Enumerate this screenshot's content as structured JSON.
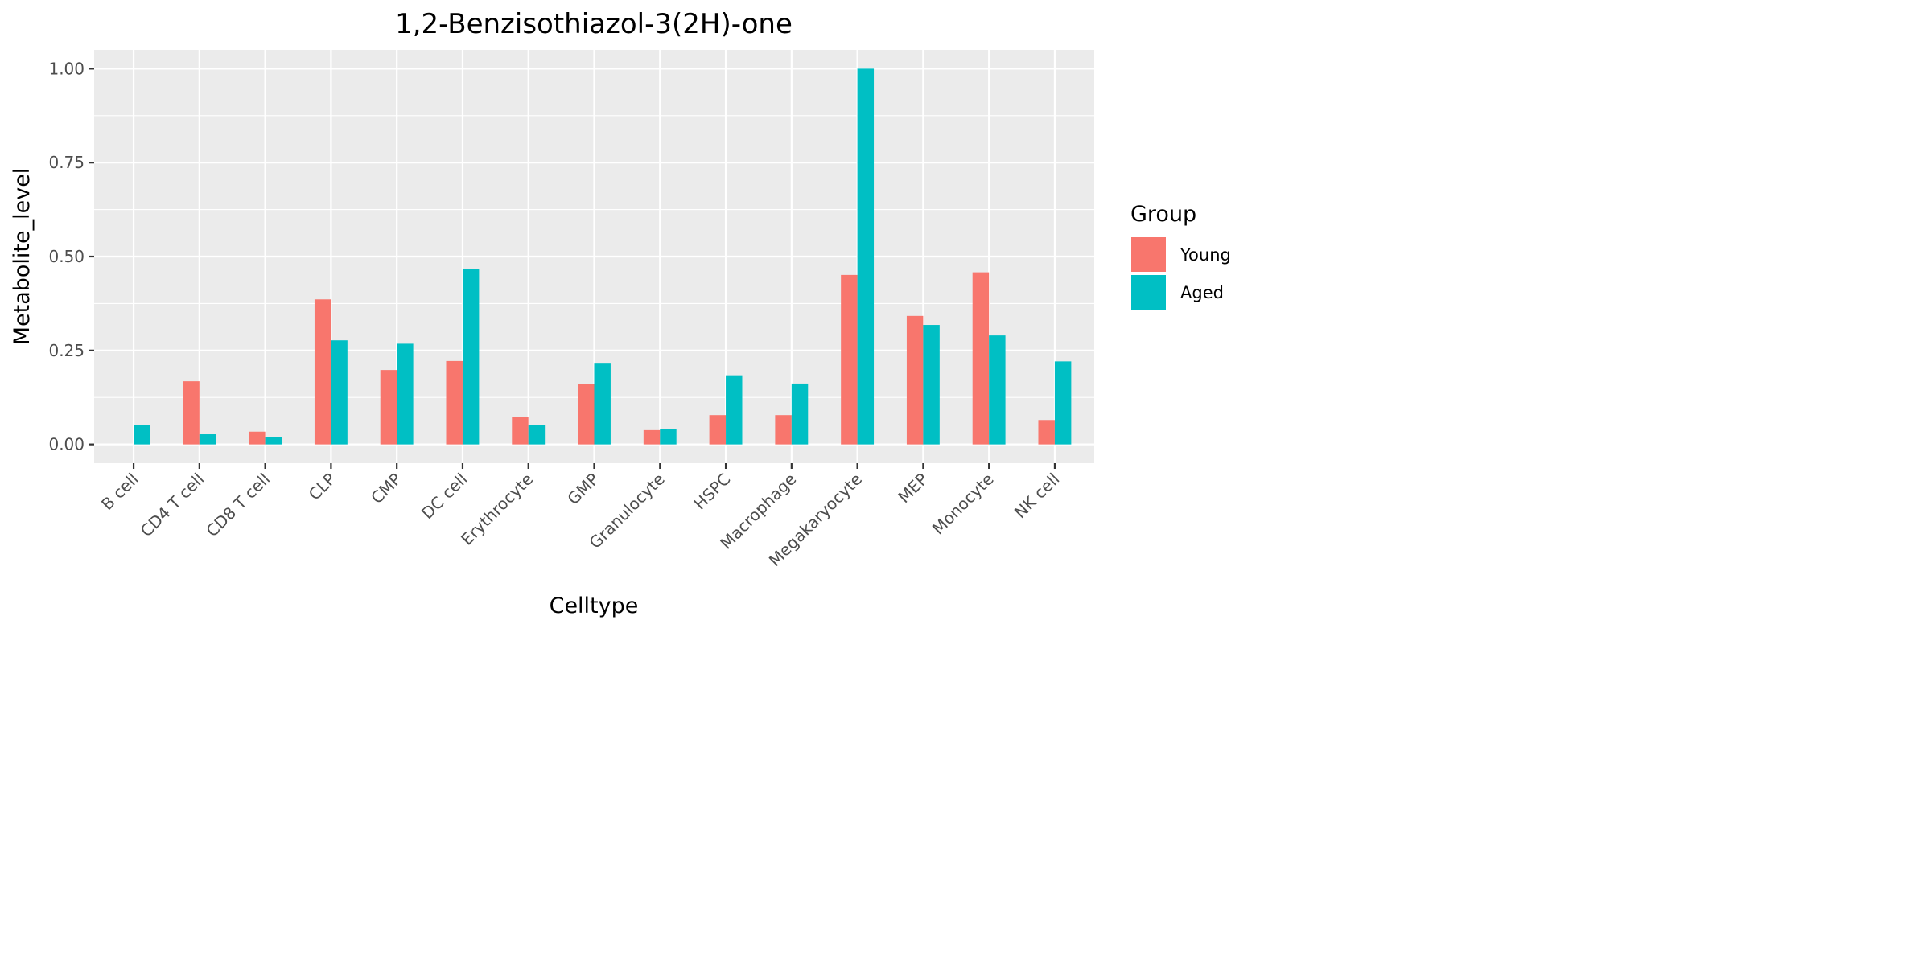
{
  "chart_data": {
    "type": "bar",
    "title": "1,2-Benzisothiazol-3(2H)-one",
    "xlabel": "Celltype",
    "ylabel": "Metabolite_level",
    "ylim": [
      -0.05,
      1.05
    ],
    "yticks": [
      0.0,
      0.25,
      0.5,
      0.75,
      1.0
    ],
    "ytick_labels": [
      "0.00",
      "0.25",
      "0.50",
      "0.75",
      "1.00"
    ],
    "grid": true,
    "legend_position": "right",
    "legend_title": "Group",
    "categories": [
      "B cell",
      "CD4 T cell",
      "CD8 T cell",
      "CLP",
      "CMP",
      "DC cell",
      "Erythrocyte",
      "GMP",
      "Granulocyte",
      "HSPC",
      "Macrophage",
      "Megakaryocyte",
      "MEP",
      "Monocyte",
      "NK cell"
    ],
    "series": [
      {
        "name": "Young",
        "color": "#F8766D",
        "values": [
          null,
          0.168,
          0.034,
          0.386,
          0.198,
          0.222,
          0.073,
          0.161,
          0.038,
          0.078,
          0.078,
          0.451,
          0.342,
          0.458,
          0.065
        ]
      },
      {
        "name": "Aged",
        "color": "#00BFC4",
        "values": [
          0.052,
          0.027,
          0.019,
          0.277,
          0.268,
          0.467,
          0.051,
          0.215,
          0.041,
          0.184,
          0.162,
          1.0,
          0.318,
          0.29,
          0.221
        ]
      }
    ]
  }
}
